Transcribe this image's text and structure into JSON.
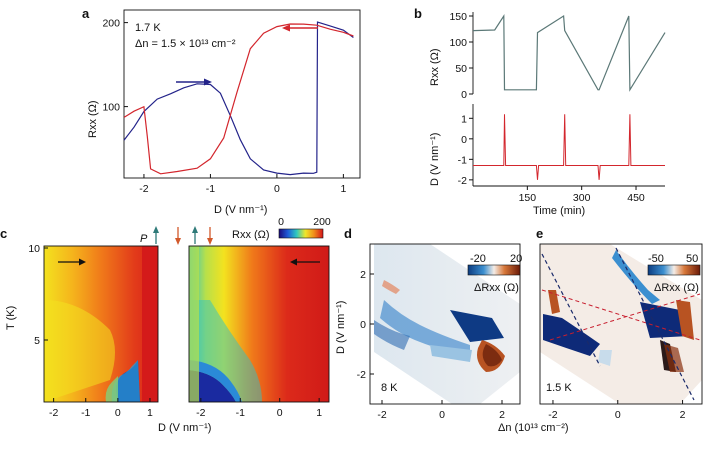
{
  "chart_data": [
    {
      "panel": "a",
      "type": "line",
      "annotation_temp": "1.7 K",
      "annotation_dn": "Δn = 1.5 × 10¹³ cm⁻²",
      "xlabel": "D (V nm⁻¹)",
      "ylabel": "Rxx (Ω)",
      "xlim": [
        -2.3,
        1.25
      ],
      "ylim": [
        15,
        215
      ],
      "xticks": [
        "-2",
        "-1",
        "0",
        "1"
      ],
      "yticks": [
        "100",
        "200"
      ],
      "series": [
        {
          "name": "forward sweep",
          "color": "#23238a",
          "x": [
            -2.3,
            -2.15,
            -2.0,
            -1.8,
            -1.6,
            -1.4,
            -1.2,
            -1.0,
            -0.85,
            -0.7,
            -0.55,
            -0.4,
            -0.2,
            0.0,
            0.2,
            0.4,
            0.55,
            0.6,
            0.61,
            0.8,
            1.0,
            1.15
          ],
          "y": [
            60,
            75,
            95,
            108,
            116,
            122,
            127,
            127,
            115,
            90,
            60,
            38,
            25,
            20,
            20,
            20,
            21,
            22,
            200,
            197,
            190,
            183
          ]
        },
        {
          "name": "backward sweep",
          "color": "#d3262d",
          "x": [
            1.15,
            1.0,
            0.8,
            0.6,
            0.4,
            0.2,
            0.0,
            -0.2,
            -0.4,
            -0.6,
            -0.8,
            -1.0,
            -1.2,
            -1.5,
            -1.75,
            -1.9,
            -1.95,
            -2.0,
            -2.15,
            -2.3
          ],
          "y": [
            184,
            188,
            193,
            196,
            199,
            198,
            195,
            188,
            168,
            118,
            62,
            38,
            27,
            22,
            21,
            25,
            65,
            100,
            94,
            88
          ]
        }
      ]
    },
    {
      "panel": "b-top",
      "type": "line",
      "xlabel": "Time (min)",
      "ylabel": "Rxx (Ω)",
      "yticks": [
        "0",
        "50",
        "100",
        "150"
      ],
      "ylim": [
        0,
        150
      ],
      "series": [
        {
          "name": "Rxx",
          "color": "#5b7877",
          "x": [
            0,
            60,
            85,
            87,
            175,
            178,
            250,
            253,
            345,
            348,
            430,
            433,
            530
          ],
          "y": [
            122,
            123,
            150,
            8,
            8,
            118,
            150,
            122,
            8,
            8,
            150,
            8,
            118
          ]
        }
      ]
    },
    {
      "panel": "b-bottom",
      "type": "line",
      "xlabel": "Time (min)",
      "ylabel": "D (V nm⁻¹)",
      "xticks": [
        "150",
        "300",
        "450"
      ],
      "yticks": [
        "1",
        "0",
        "-1",
        "-2"
      ],
      "ylim": [
        -2.3,
        1.6
      ],
      "series": [
        {
          "name": "D",
          "color": "#d3262d",
          "x": [
            0,
            85,
            87,
            90,
            175,
            178,
            181,
            250,
            253,
            256,
            345,
            348,
            351,
            430,
            433,
            436,
            530
          ],
          "y": [
            -1.3,
            -1.3,
            1.2,
            -1.3,
            -1.3,
            -2.0,
            -1.3,
            -1.3,
            1.2,
            -1.3,
            -1.3,
            -2.0,
            -1.3,
            -1.3,
            1.2,
            -1.3,
            -1.3
          ]
        }
      ]
    },
    {
      "panel": "c",
      "type": "heatmap",
      "ylabel": "T (K)",
      "xlabel": "D (V nm⁻¹)",
      "yticks": [
        "10",
        "5"
      ],
      "left_xticks": [
        "-2",
        "-1",
        "0",
        "1"
      ],
      "right_xticks": [
        "-2",
        "-1",
        "0",
        "1"
      ],
      "label_p": "P",
      "colorbar_label": "Rxx (Ω)",
      "colorbar_ticks": [
        "0",
        "200"
      ],
      "colorbar_range": [
        0,
        200
      ]
    },
    {
      "panel": "d",
      "type": "heatmap",
      "temperature": "8 K",
      "ylabel": "D (V nm⁻¹)",
      "xticks": [
        "-2",
        "0",
        "2"
      ],
      "yticks": [
        "2",
        "0",
        "-2"
      ],
      "colorbar_label": "ΔRxx (Ω)",
      "colorbar_ticks": [
        "-20",
        "20"
      ],
      "colorbar_range": [
        -20,
        20
      ]
    },
    {
      "panel": "e",
      "type": "heatmap",
      "temperature": "1.5 K",
      "xlabel": "Δn (10¹³ cm⁻²)",
      "xticks": [
        "-2",
        "0",
        "2"
      ],
      "colorbar_label": "ΔRxx (Ω)",
      "colorbar_ticks": [
        "-50",
        "50"
      ],
      "colorbar_range": [
        -50,
        50
      ]
    }
  ],
  "panel_labels": {
    "a": "a",
    "b": "b",
    "c": "c",
    "d": "d",
    "e": "e"
  },
  "colors": {
    "blue_curve": "#23238a",
    "red_curve": "#d3262d",
    "rxx_trace": "#5b7877",
    "arrow_green": "#2f7a79",
    "arrow_orange": "#d2592b"
  }
}
